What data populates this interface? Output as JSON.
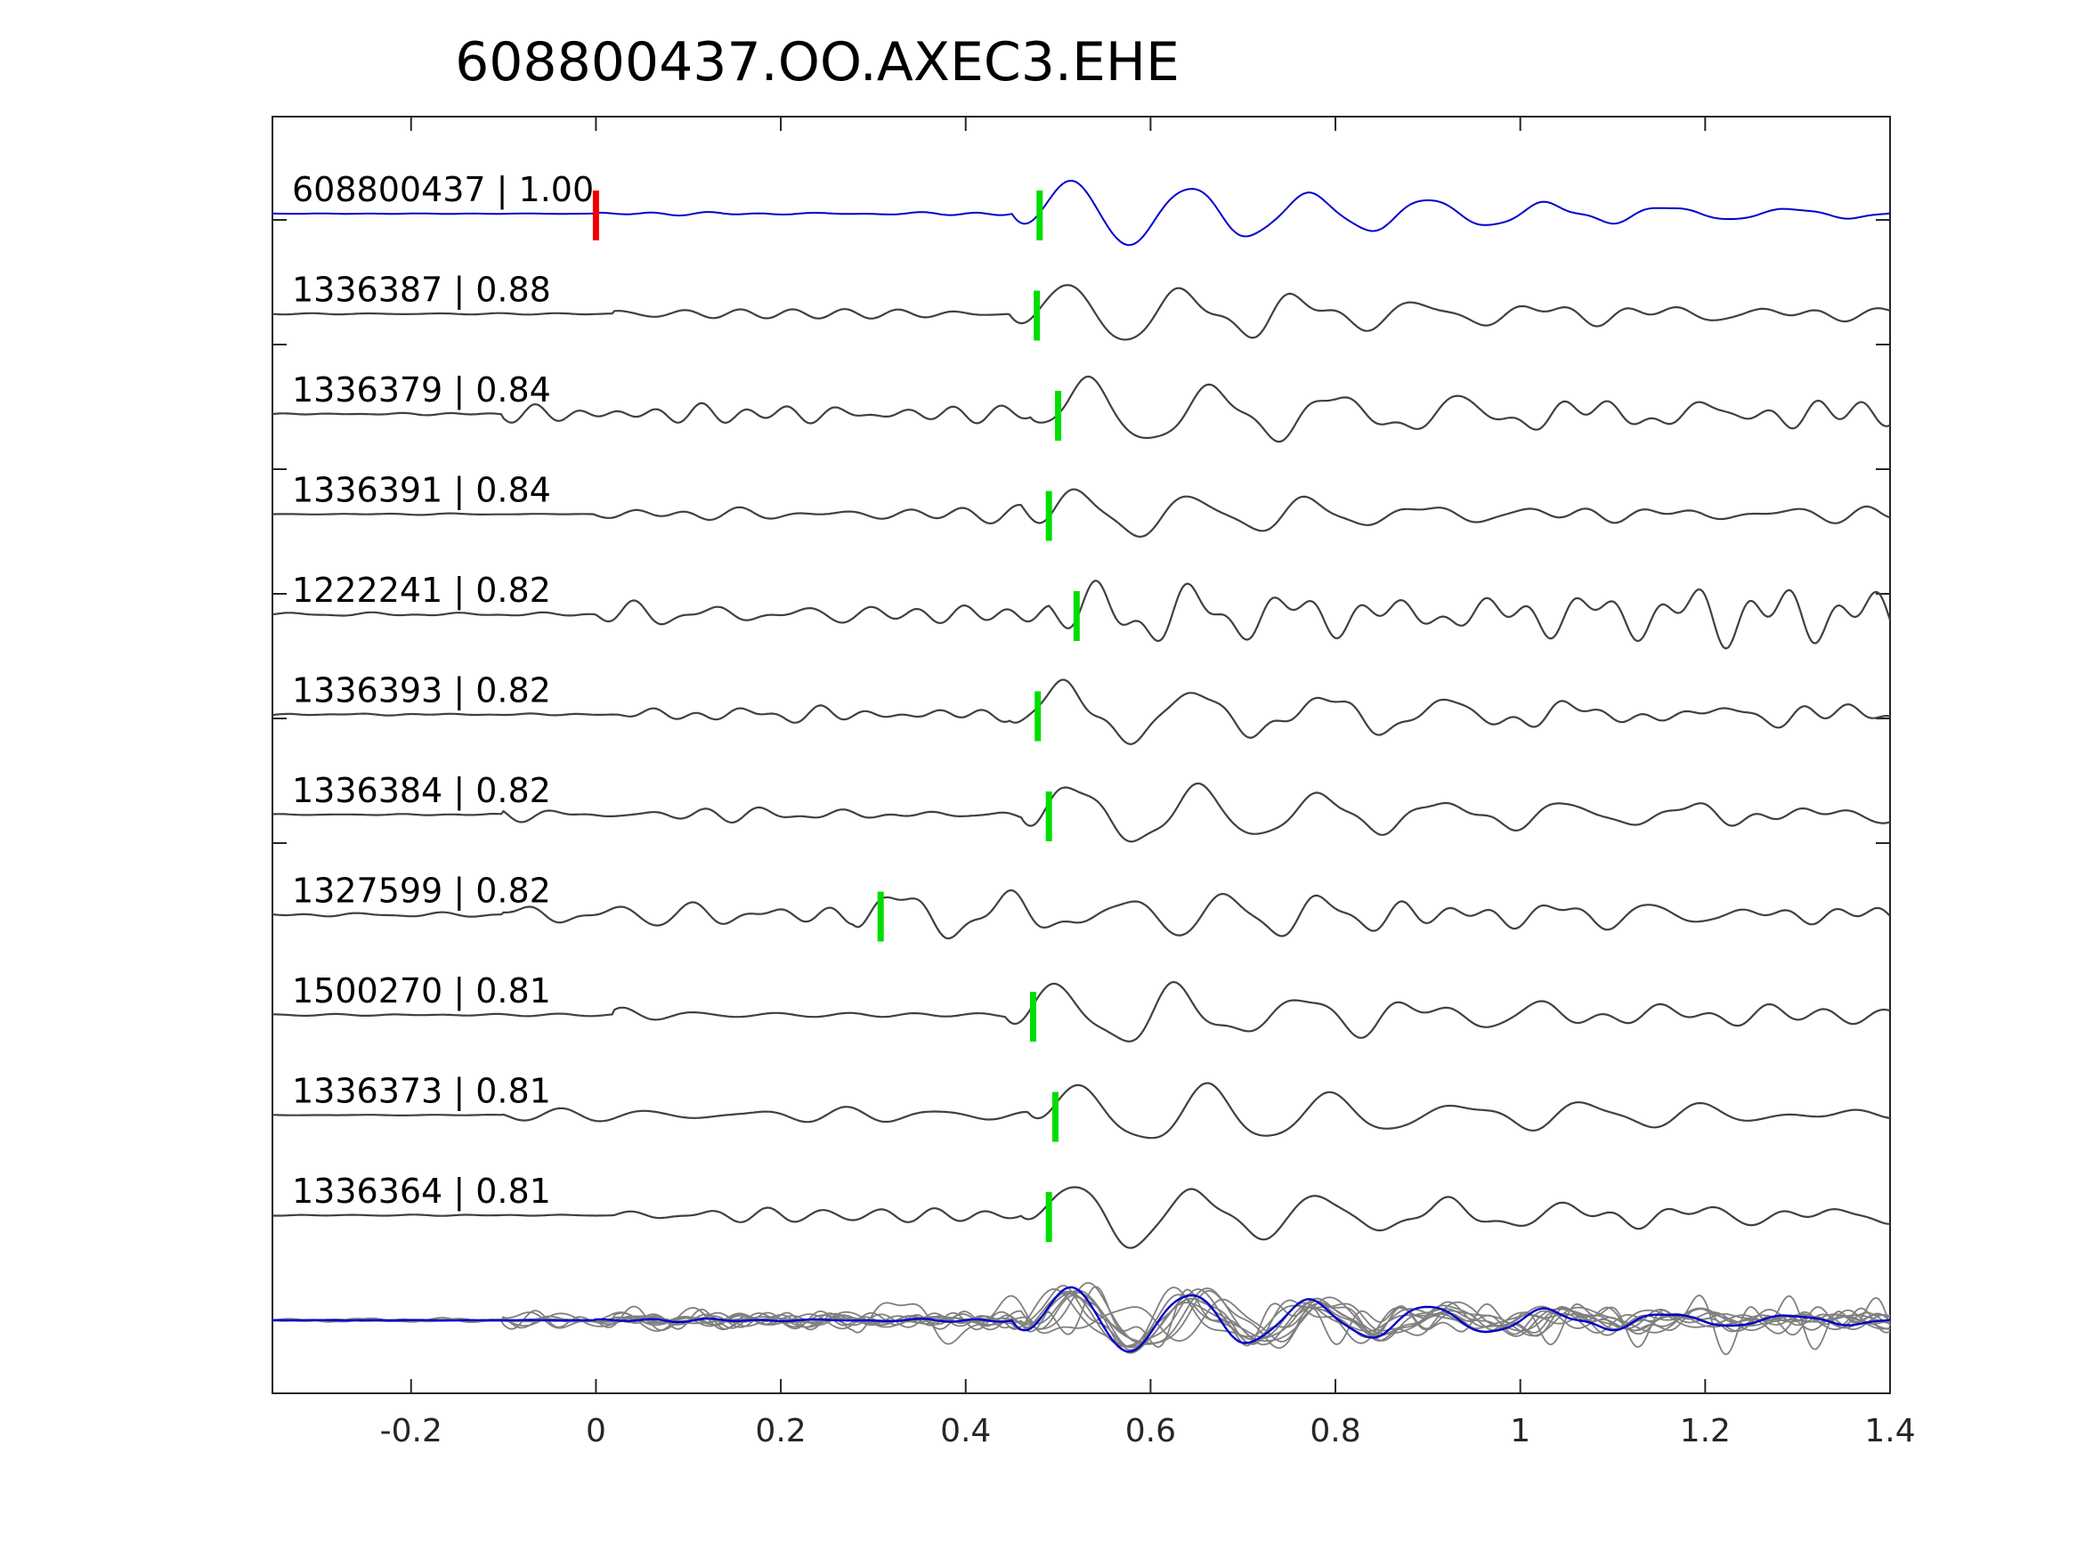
{
  "chart_data": {
    "type": "line",
    "title": "608800437.OO.AXEC3.EHE",
    "xlabel": "",
    "ylabel": "",
    "xlim": [
      -0.35,
      1.4
    ],
    "xticks": [
      -0.2,
      0,
      0.2,
      0.4,
      0.6,
      0.8,
      1,
      1.2,
      1.4
    ],
    "xtick_labels": [
      "-0.2",
      "0",
      "0.2",
      "0.4",
      "0.6",
      "0.8",
      "1",
      "1.2",
      "1.4"
    ],
    "grid": false,
    "legend": "none",
    "colors": {
      "template": "#0000cc",
      "match": "#404040",
      "stack": "#808080",
      "pick": "#00dd00",
      "origin": "#ee0000",
      "axis": "#262626"
    },
    "origin_marker_x": 0.0,
    "series": [
      {
        "label": "608800437 | 1.00",
        "id": "608800437",
        "cc": "1.00",
        "pick": 0.48,
        "template": true,
        "amp": 0.62,
        "alpha": 0.04,
        "f": 7.7,
        "tdecay": 0.4,
        "phi": 0.0,
        "onset": 0.0,
        "seed": 1
      },
      {
        "label": "1336387 | 0.88",
        "id": "1336387",
        "cc": "0.88",
        "pick": 0.477,
        "template": false,
        "amp": 0.55,
        "alpha": 0.14,
        "f": 7.8,
        "tdecay": 0.35,
        "phi": 0.2,
        "onset": 0.02,
        "seed": 2
      },
      {
        "label": "1336379 | 0.84",
        "id": "1336379",
        "cc": "0.84",
        "pick": 0.5,
        "template": false,
        "amp": 0.58,
        "alpha": 0.18,
        "f": 7.4,
        "tdecay": 0.42,
        "phi": 0.5,
        "onset": -0.1,
        "seed": 3
      },
      {
        "label": "1336391 | 0.84",
        "id": "1336391",
        "cc": "0.84",
        "pick": 0.49,
        "template": false,
        "amp": 0.45,
        "alpha": 0.14,
        "f": 7.9,
        "tdecay": 0.3,
        "phi": 0.8,
        "onset": 0.0,
        "seed": 4
      },
      {
        "label": "1222241 | 0.82",
        "id": "1222241",
        "cc": "0.82",
        "pick": 0.52,
        "template": false,
        "amp": 0.4,
        "alpha": 0.38,
        "f": 9.5,
        "tdecay": 0.6,
        "phi": 1.1,
        "onset": 0.0,
        "seed": 5
      },
      {
        "label": "1336393 | 0.82",
        "id": "1336393",
        "cc": "0.82",
        "pick": 0.478,
        "template": false,
        "amp": 0.55,
        "alpha": 0.17,
        "f": 7.2,
        "tdecay": 0.4,
        "phi": 1.4,
        "onset": 0.02,
        "seed": 6
      },
      {
        "label": "1336384 | 0.82",
        "id": "1336384",
        "cc": "0.82",
        "pick": 0.49,
        "template": false,
        "amp": 0.55,
        "alpha": 0.15,
        "f": 7.5,
        "tdecay": 0.45,
        "phi": 1.7,
        "onset": -0.1,
        "seed": 7
      },
      {
        "label": "1327599 | 0.82",
        "id": "1327599",
        "cc": "0.82",
        "pick": 0.308,
        "template": false,
        "amp": 0.4,
        "alpha": 0.32,
        "f": 8.6,
        "tdecay": 0.5,
        "phi": 2.0,
        "onset": -0.1,
        "seed": 8
      },
      {
        "label": "1500270 | 0.81",
        "id": "1500270",
        "cc": "0.81",
        "pick": 0.473,
        "template": false,
        "amp": 0.55,
        "alpha": 0.15,
        "f": 7.6,
        "tdecay": 0.38,
        "phi": 2.3,
        "onset": 0.02,
        "seed": 9
      },
      {
        "label": "1336373 | 0.81",
        "id": "1336373",
        "cc": "0.81",
        "pick": 0.497,
        "template": false,
        "amp": 0.58,
        "alpha": 0.15,
        "f": 7.3,
        "tdecay": 0.42,
        "phi": 2.6,
        "onset": -0.1,
        "seed": 10
      },
      {
        "label": "1336364 | 0.81",
        "id": "1336364",
        "cc": "0.81",
        "pick": 0.49,
        "template": false,
        "amp": 0.58,
        "alpha": 0.15,
        "f": 7.4,
        "tdecay": 0.4,
        "phi": 2.9,
        "onset": 0.02,
        "seed": 11
      }
    ]
  }
}
